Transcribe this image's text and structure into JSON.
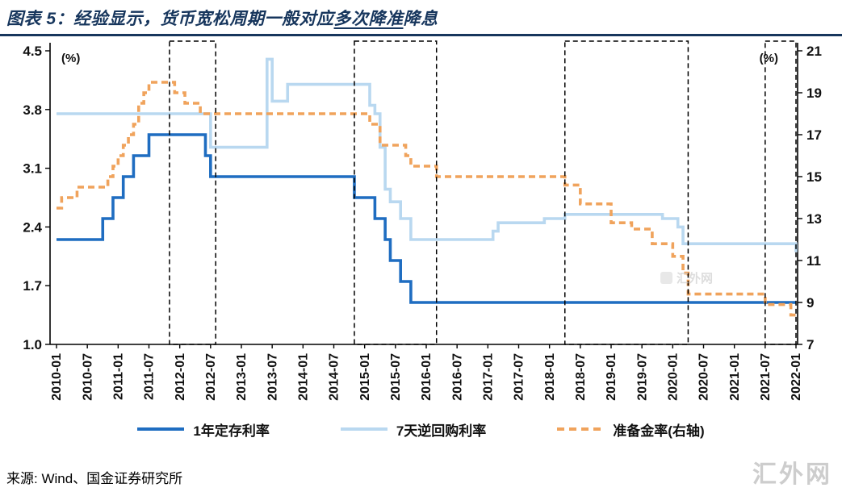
{
  "title": {
    "prefix": "图表 5：经验显示，货币宽松周期一般对应",
    "underlined": "多次降准",
    "suffix": "降息"
  },
  "source": "来源: Wind、国金证券研究所",
  "watermark": "汇外网",
  "watermark_small": "汇外网",
  "colors": {
    "title": "#17365d",
    "deposit_rate_line": "#1f6dc1",
    "reverse_repo_line": "#b9d8f0",
    "rrr_line": "#f0a35c",
    "highlight_box": "#000000"
  },
  "chart_data": {
    "type": "line",
    "subtype": "step",
    "left_axis": {
      "label": "(%)",
      "min": 1.0,
      "max": 4.5,
      "ticks": [
        4.5,
        3.8,
        3.1,
        2.4,
        1.7,
        1.0
      ]
    },
    "right_axis": {
      "label": "(%)",
      "min": 7,
      "max": 21,
      "ticks": [
        21,
        19,
        17,
        15,
        13,
        11,
        9,
        7
      ]
    },
    "x_axis": {
      "start_month": "2010-01",
      "end_month": "2022-01",
      "tick_interval_months": 6,
      "tick_labels": [
        "2010-01",
        "2010-07",
        "2011-01",
        "2011-07",
        "2012-01",
        "2012-07",
        "2013-01",
        "2013-07",
        "2014-01",
        "2014-07",
        "2015-01",
        "2015-07",
        "2016-01",
        "2016-07",
        "2017-01",
        "2017-07",
        "2018-01",
        "2018-07",
        "2019-01",
        "2019-07",
        "2020-01",
        "2020-07",
        "2021-01",
        "2021-07",
        "2022-01"
      ],
      "grid": false
    },
    "series": [
      {
        "name": "1年定存利率",
        "axis": "left",
        "color": "#1f6dc1",
        "line_style": "solid",
        "points": [
          [
            "2010-01",
            2.25
          ],
          [
            "2010-10",
            2.5
          ],
          [
            "2010-12",
            2.75
          ],
          [
            "2011-02",
            3.0
          ],
          [
            "2011-04",
            3.25
          ],
          [
            "2011-07",
            3.5
          ],
          [
            "2012-06",
            3.25
          ],
          [
            "2012-07",
            3.0
          ],
          [
            "2014-11",
            2.75
          ],
          [
            "2015-03",
            2.5
          ],
          [
            "2015-05",
            2.25
          ],
          [
            "2015-06",
            2.0
          ],
          [
            "2015-08",
            1.75
          ],
          [
            "2015-10",
            1.5
          ],
          [
            "2022-01",
            1.5
          ]
        ]
      },
      {
        "name": "7天逆回购利率",
        "axis": "left",
        "color": "#b9d8f0",
        "line_style": "solid",
        "points": [
          [
            "2010-01",
            3.75
          ],
          [
            "2012-07",
            3.35
          ],
          [
            "2013-06",
            4.4
          ],
          [
            "2013-07",
            3.9
          ],
          [
            "2013-10",
            4.1
          ],
          [
            "2015-02",
            3.85
          ],
          [
            "2015-03",
            3.75
          ],
          [
            "2015-04",
            3.35
          ],
          [
            "2015-05",
            2.85
          ],
          [
            "2015-06",
            2.7
          ],
          [
            "2015-08",
            2.5
          ],
          [
            "2015-10",
            2.25
          ],
          [
            "2017-02",
            2.35
          ],
          [
            "2017-03",
            2.45
          ],
          [
            "2017-12",
            2.5
          ],
          [
            "2018-04",
            2.55
          ],
          [
            "2019-11",
            2.5
          ],
          [
            "2020-02",
            2.4
          ],
          [
            "2020-03",
            2.2
          ],
          [
            "2022-01",
            2.1
          ]
        ]
      },
      {
        "name": "准备金率(右轴)",
        "axis": "right",
        "color": "#f0a35c",
        "line_style": "dashed",
        "dash": "8 5",
        "points": [
          [
            "2010-01",
            13.5
          ],
          [
            "2010-02",
            14.0
          ],
          [
            "2010-05",
            14.5
          ],
          [
            "2010-11",
            15.0
          ],
          [
            "2010-12",
            15.5
          ],
          [
            "2011-01",
            16.0
          ],
          [
            "2011-02",
            16.5
          ],
          [
            "2011-03",
            17.0
          ],
          [
            "2011-04",
            17.5
          ],
          [
            "2011-05",
            18.5
          ],
          [
            "2011-06",
            19.0
          ],
          [
            "2011-07",
            19.5
          ],
          [
            "2011-12",
            19.0
          ],
          [
            "2012-02",
            18.5
          ],
          [
            "2012-05",
            18.0
          ],
          [
            "2015-02",
            17.5
          ],
          [
            "2015-04",
            16.5
          ],
          [
            "2015-09",
            16.0
          ],
          [
            "2015-10",
            15.5
          ],
          [
            "2016-03",
            15.0
          ],
          [
            "2018-04",
            14.6
          ],
          [
            "2018-07",
            13.7
          ],
          [
            "2019-01",
            12.8
          ],
          [
            "2019-05",
            12.5
          ],
          [
            "2019-09",
            11.8
          ],
          [
            "2020-01",
            11.2
          ],
          [
            "2020-03",
            10.4
          ],
          [
            "2020-04",
            9.4
          ],
          [
            "2021-07",
            8.9
          ],
          [
            "2021-12",
            8.4
          ]
        ]
      }
    ],
    "highlight_boxes": [
      {
        "from": "2011-11",
        "to": "2012-08"
      },
      {
        "from": "2014-11",
        "to": "2016-03"
      },
      {
        "from": "2018-04",
        "to": "2020-04"
      },
      {
        "from": "2021-07",
        "to": "2022-01"
      }
    ]
  }
}
